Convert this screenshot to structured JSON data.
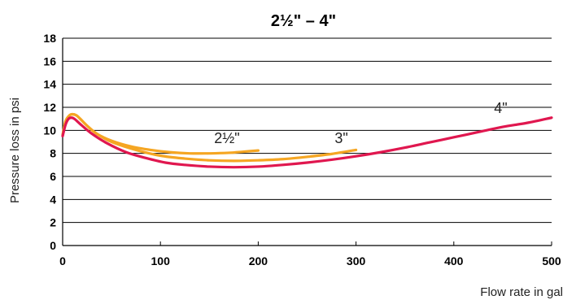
{
  "chart_data": {
    "type": "line",
    "title": "2½\" – 4\"",
    "xlabel": "Flow rate in gal",
    "ylabel": "Pressure loss in psi",
    "xlim": [
      0,
      500
    ],
    "ylim": [
      0,
      18
    ],
    "x_ticks": [
      "0",
      "100",
      "200",
      "300",
      "400",
      "500"
    ],
    "y_ticks": [
      "0",
      "2",
      "4",
      "6",
      "8",
      "10",
      "12",
      "14",
      "16",
      "18"
    ],
    "grid": "horizontal",
    "series": [
      {
        "name": "2½\"",
        "color": "#f5a623",
        "x": [
          0,
          3,
          7,
          10,
          14,
          18,
          25,
          35,
          50,
          70,
          90,
          110,
          130,
          150,
          170,
          185,
          200
        ],
        "y": [
          9.6,
          10.8,
          11.3,
          11.4,
          11.3,
          11.0,
          10.4,
          9.7,
          9.1,
          8.6,
          8.3,
          8.1,
          8.0,
          8.0,
          8.05,
          8.15,
          8.25
        ]
      },
      {
        "name": "3\"",
        "color": "#f5a623",
        "x": [
          0,
          3,
          7,
          10,
          14,
          18,
          25,
          35,
          50,
          75,
          100,
          125,
          150,
          175,
          200,
          225,
          250,
          275,
          300
        ],
        "y": [
          9.6,
          10.8,
          11.3,
          11.4,
          11.3,
          11.0,
          10.4,
          9.7,
          9.0,
          8.3,
          7.8,
          7.55,
          7.4,
          7.35,
          7.4,
          7.5,
          7.7,
          7.95,
          8.3
        ]
      },
      {
        "name": "4\"",
        "color": "#e0174f",
        "x": [
          0,
          3,
          6,
          9,
          12,
          16,
          20,
          30,
          45,
          65,
          85,
          105,
          125,
          150,
          175,
          200,
          225,
          250,
          275,
          300,
          325,
          350,
          375,
          400,
          425,
          450,
          475,
          500
        ],
        "y": [
          9.5,
          10.5,
          11.0,
          11.1,
          11.0,
          10.7,
          10.4,
          9.7,
          8.9,
          8.1,
          7.6,
          7.2,
          7.0,
          6.85,
          6.8,
          6.85,
          7.0,
          7.2,
          7.45,
          7.75,
          8.1,
          8.5,
          8.95,
          9.4,
          9.85,
          10.3,
          10.65,
          11.1
        ]
      }
    ],
    "label_positions": [
      {
        "text": "2½\"",
        "x": 168,
        "y": 8.9
      },
      {
        "text": "3\"",
        "x": 285,
        "y": 8.9
      },
      {
        "text": "4\"",
        "x": 448,
        "y": 11.5
      }
    ]
  }
}
